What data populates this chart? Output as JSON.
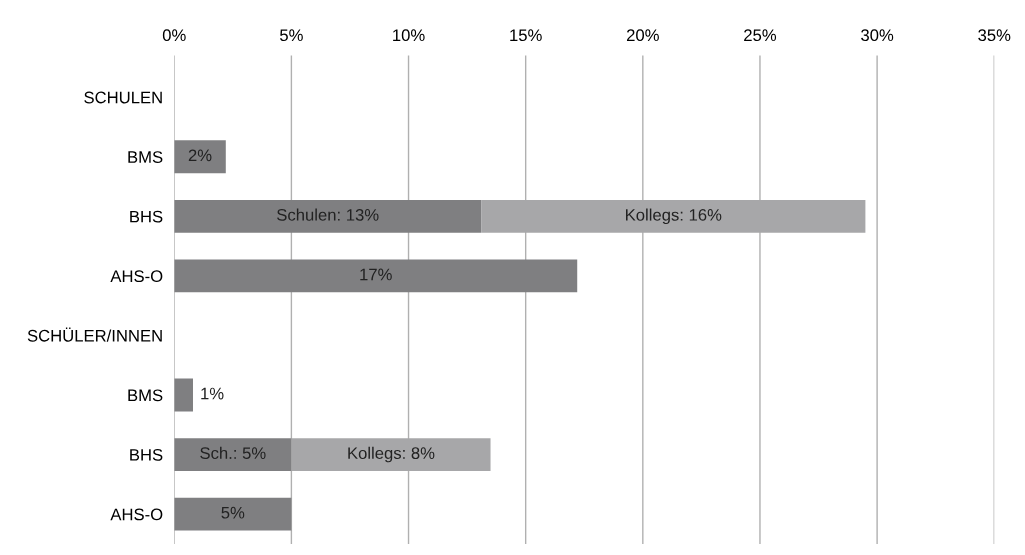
{
  "chart_data": {
    "type": "bar",
    "orientation": "horizontal",
    "stacked": true,
    "categories": [
      "SCHULEN",
      "BMS",
      "BHS",
      "AHS-O",
      "SCHÜLER/INNEN",
      "BMS",
      "BHS",
      "AHS-O"
    ],
    "series": [
      {
        "color": "#7f7f81",
        "values": [
          null,
          2.2,
          13.1,
          17.2,
          null,
          0.8,
          5.0,
          5.0
        ],
        "value_labels": [
          null,
          "2%",
          "Schulen: 13%",
          "17%",
          null,
          "1%",
          "Sch.: 5%",
          "5%"
        ]
      },
      {
        "color": "#a7a7a9",
        "values": [
          null,
          null,
          16.4,
          null,
          null,
          null,
          8.5,
          null
        ],
        "value_labels": [
          null,
          null,
          "Kollegs: 16%",
          null,
          null,
          null,
          "Kollegs: 8%",
          null
        ]
      }
    ],
    "xlim": [
      0,
      35
    ],
    "xticks": [
      {
        "value": 0,
        "label": "0%"
      },
      {
        "value": 5,
        "label": "5%"
      },
      {
        "value": 10,
        "label": "10%"
      },
      {
        "value": 15,
        "label": "15%"
      },
      {
        "value": 20,
        "label": "20%"
      },
      {
        "value": 25,
        "label": "25%"
      },
      {
        "value": 30,
        "label": "30%"
      },
      {
        "value": 35,
        "label": "35%"
      }
    ],
    "grid": "x"
  }
}
